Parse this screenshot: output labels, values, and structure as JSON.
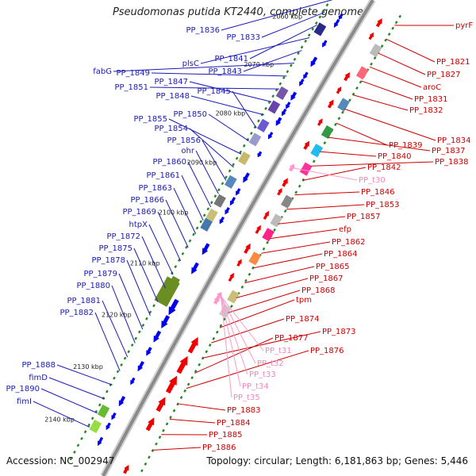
{
  "title": "Pseudomonas putida KT2440, complete genome",
  "footer": {
    "accession": "Accession: NC_002947",
    "stats": "Topology: circular; Length: 6,181,863 bp; Genes: 5,446"
  },
  "colors": {
    "forward_gene": "#0000ee",
    "reverse_gene": "#ee0000",
    "trna": "#ff99cc",
    "backbone": "#8a8a8a",
    "minor_tick": "#228822",
    "left_label": "#1a1ab8",
    "right_label": "#cc0000",
    "trna_label": "#ee88bb"
  },
  "kbp_ticks": [
    "2060 kbp",
    "2070 kbp",
    "2080 kbp",
    "2090 kbp",
    "2100 kbp",
    "2110 kbp",
    "2120 kbp",
    "2130 kbp",
    "2140 kbp"
  ],
  "left_labels": [
    "PP_1836",
    "PP_1833",
    "PP_1841",
    "plsC",
    "PP_1843",
    "fabG",
    "PP_1849",
    "PP_1851",
    "PP_1847",
    "PP_1848",
    "PP_1845",
    "PP_1850",
    "PP_1855",
    "PP_1854",
    "PP_1856",
    "ohr",
    "PP_1860",
    "PP_1861",
    "PP_1863",
    "PP_1866",
    "PP_1869",
    "htpX",
    "PP_1872",
    "PP_1875",
    "PP_1878",
    "PP_1879",
    "PP_1880",
    "PP_1881",
    "PP_1882",
    "PP_1888",
    "fimD",
    "PP_1890",
    "fimI"
  ],
  "right_labels": [
    "pyrF",
    "PP_1821",
    "PP_1827",
    "aroC",
    "PP_1831",
    "PP_1832",
    "PP_1834",
    "PP_1839",
    "PP_1837",
    "PP_1840",
    "PP_1838",
    "PP_1842",
    "PP_1846",
    "PP_1853",
    "PP_1857",
    "efp",
    "PP_1862",
    "PP_1864",
    "PP_1865",
    "PP_1867",
    "PP_1868",
    "tpm",
    "PP_1874",
    "PP_1873",
    "PP_1877",
    "PP_1876",
    "PP_1883",
    "PP_1884",
    "PP_1885",
    "PP_1886"
  ],
  "trna_labels": [
    "PP_t30",
    "PP_t31",
    "PP_t32",
    "PP_t33",
    "PP_t34",
    "PP_t35"
  ]
}
